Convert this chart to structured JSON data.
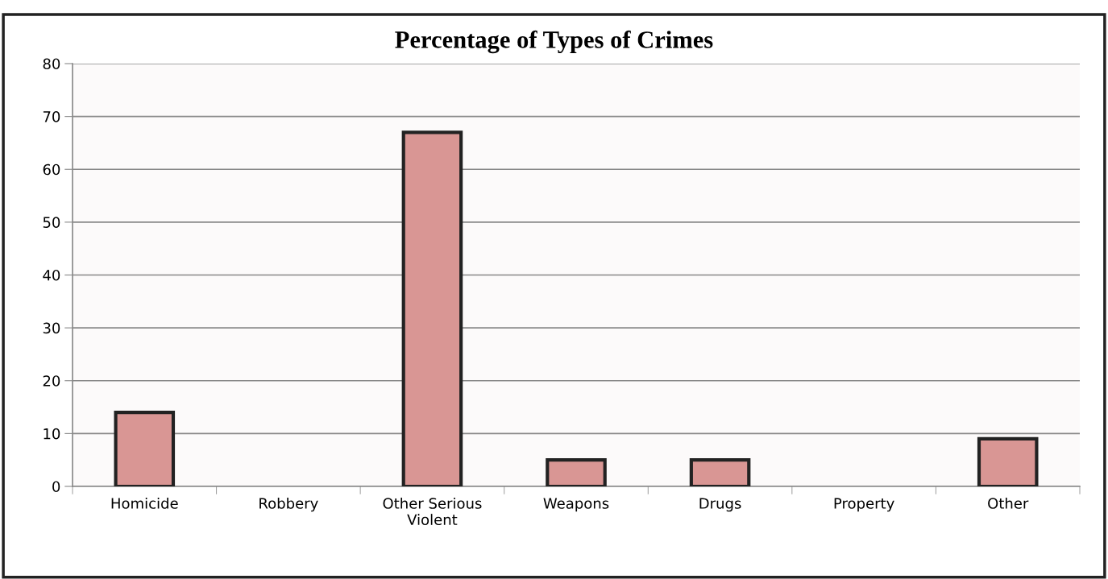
{
  "chart_data": {
    "type": "bar",
    "title": "Percentage of Types of Crimes",
    "categories": [
      "Homicide",
      "Robbery",
      "Other Serious\nViolent",
      "Weapons",
      "Drugs",
      "Property",
      "Other"
    ],
    "values": [
      14,
      0,
      67,
      5,
      5,
      0,
      9
    ],
    "color": "#d99694",
    "ylim": [
      0,
      80
    ],
    "yticks": [
      0,
      10,
      20,
      30,
      40,
      50,
      60,
      70,
      80
    ],
    "grid": "y",
    "legend": false
  }
}
